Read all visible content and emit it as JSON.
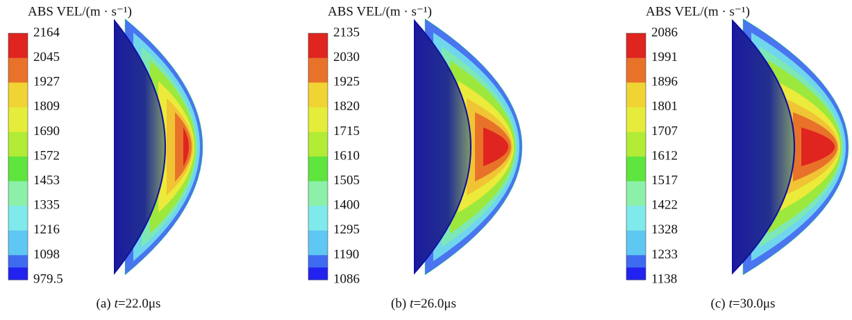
{
  "panels": [
    {
      "legend_title": "ABS VEL/(m · s⁻¹)",
      "legend_labels": [
        2164,
        2045,
        1927,
        1809,
        1690,
        1572,
        1453,
        1335,
        1216,
        1098,
        979.5
      ],
      "caption": {
        "label": "(a)",
        "variable": "t",
        "value": "=22.0μs"
      }
    },
    {
      "legend_title": "ABS VEL/(m · s⁻¹)",
      "legend_labels": [
        2135,
        2030,
        1925,
        1820,
        1715,
        1610,
        1505,
        1400,
        1295,
        1190,
        1086
      ],
      "caption": {
        "label": "(b)",
        "variable": "t",
        "value": "=26.0μs"
      }
    },
    {
      "legend_title": "ABS VEL/(m · s⁻¹)",
      "legend_labels": [
        2086,
        1991,
        1896,
        1801,
        1707,
        1612,
        1517,
        1422,
        1328,
        1233,
        1138
      ],
      "caption": {
        "label": "(c)",
        "variable": "t",
        "value": "=30.0μs"
      }
    }
  ]
}
